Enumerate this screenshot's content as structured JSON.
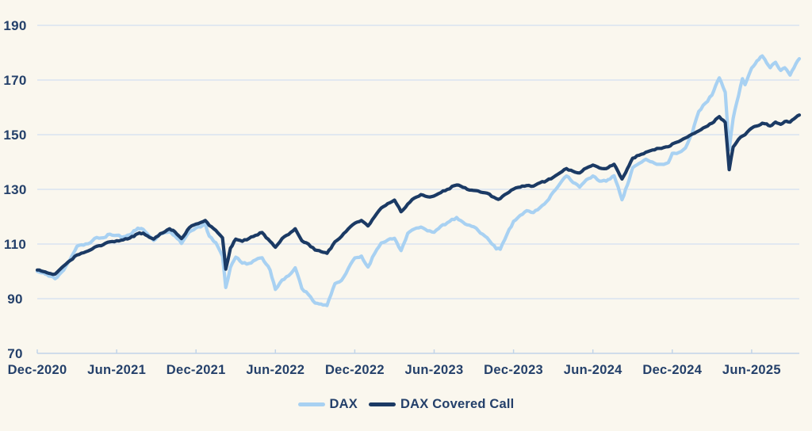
{
  "theme": {
    "background": "#FAF7EE",
    "grid_color": "#D2E0F1",
    "axis_color": "#C2D4E8",
    "text_color": "#24406A"
  },
  "chart_data": {
    "type": "line",
    "title": "",
    "x_unit": "months since Dec-2020",
    "index_base": "Dec-2020 = 100",
    "xlim": [
      0,
      57.6
    ],
    "ylim": [
      70,
      190
    ],
    "grid": "horizontal",
    "legend_position": "bottom-center",
    "y_ticks": [
      190,
      170,
      150,
      130,
      110,
      90,
      70
    ],
    "x_ticks": [
      {
        "label": "Dec-2020",
        "month": 0
      },
      {
        "label": "Jun-2021",
        "month": 6
      },
      {
        "label": "Dec-2021",
        "month": 12
      },
      {
        "label": "Jun-2022",
        "month": 18
      },
      {
        "label": "Dec-2022",
        "month": 24
      },
      {
        "label": "Jun-2023",
        "month": 30
      },
      {
        "label": "Dec-2023",
        "month": 36
      },
      {
        "label": "Jun-2024",
        "month": 42
      },
      {
        "label": "Dec-2024",
        "month": 48
      },
      {
        "label": "Jun-2025",
        "month": 54
      }
    ],
    "x": [
      0,
      0.6,
      1.0,
      1.35,
      2,
      2.5,
      3,
      3.5,
      4,
      4.5,
      5,
      5.5,
      6,
      6.5,
      7,
      7.6,
      8,
      8.8,
      9.3,
      10,
      10.4,
      10.9,
      11.5,
      12,
      12.7,
      13,
      13.5,
      14,
      14.25,
      14.6,
      15,
      15.5,
      16,
      16.5,
      17,
      17.6,
      18,
      18.5,
      19,
      19.5,
      20,
      20.5,
      21,
      21.9,
      22.5,
      23,
      23.5,
      24,
      24.5,
      25,
      25.5,
      26,
      26.5,
      27,
      27.5,
      28,
      28.5,
      29,
      29.5,
      30,
      30.5,
      31,
      31.7,
      32,
      32.5,
      33,
      33.5,
      34,
      34.7,
      35,
      35.5,
      36,
      36.5,
      37,
      37.5,
      38,
      38.5,
      39,
      39.5,
      40,
      40.5,
      41,
      41.5,
      42,
      42.5,
      43,
      43.6,
      44.2,
      44.6,
      45,
      45.5,
      46,
      46.5,
      47,
      47.7,
      48,
      48.5,
      49,
      49.5,
      50,
      50.5,
      51,
      51.55,
      52.0,
      52.3,
      52.6,
      53,
      53.3,
      53.5,
      54,
      54.4,
      54.8,
      55,
      55.4,
      55.8,
      56.2,
      56.5,
      56.9,
      57.2,
      57.6
    ],
    "series": [
      {
        "id": "dax",
        "name": "DAX",
        "color": "#A8D1F2",
        "width": 4.2,
        "jitter": 1.3,
        "values": [
          100,
          99.0,
          98.2,
          97.3,
          100.5,
          104.5,
          109.2,
          109.6,
          110.4,
          112.4,
          112.3,
          113.6,
          113.2,
          112.6,
          113.4,
          115.8,
          115.4,
          111.3,
          113.6,
          114.5,
          113.0,
          110.2,
          114.5,
          115.9,
          117.3,
          112.9,
          110.5,
          105.5,
          94.1,
          101.5,
          105.2,
          103.0,
          102.9,
          104.2,
          105.0,
          100.5,
          93.4,
          96.8,
          98.4,
          101.3,
          93.7,
          91.5,
          88.4,
          87.5,
          95.5,
          96.7,
          101.0,
          104.9,
          105.6,
          101.6,
          106.5,
          110.4,
          111.5,
          112.1,
          107.6,
          113.9,
          115.5,
          116.2,
          114.8,
          114.3,
          116.5,
          117.8,
          119.7,
          118.6,
          117.0,
          116.3,
          114.0,
          112.3,
          108.2,
          108.1,
          113.5,
          118.3,
          120.5,
          122.2,
          121.5,
          123.3,
          125.5,
          129.0,
          132.0,
          134.9,
          132.5,
          130.8,
          133.5,
          134.9,
          133.0,
          133.0,
          135.0,
          126.2,
          131.5,
          137.9,
          139.5,
          141.0,
          140.0,
          139.2,
          139.8,
          143.2,
          143.5,
          145.2,
          150.5,
          158.5,
          161.5,
          164.5,
          170.8,
          165.5,
          144.5,
          156.0,
          164.2,
          170.5,
          168.3,
          174.4,
          177.0,
          178.8,
          177.5,
          174.5,
          176.5,
          173.5,
          174.5,
          171.8,
          174.5,
          177.8
        ]
      },
      {
        "id": "dax-covered-call",
        "name": "DAX Covered Call",
        "color": "#1B3A64",
        "width": 4.2,
        "jitter": 0.9,
        "values": [
          100.5,
          99.8,
          99.2,
          99.0,
          102.0,
          104.0,
          106.0,
          106.8,
          107.8,
          109.2,
          109.8,
          110.8,
          111.2,
          111.5,
          112.2,
          113.8,
          114.0,
          111.8,
          113.8,
          115.6,
          114.5,
          112.0,
          116.0,
          117.3,
          118.6,
          116.8,
          115.0,
          112.3,
          100.8,
          108.5,
          111.8,
          111.0,
          112.0,
          113.2,
          114.2,
          111.0,
          108.8,
          112.0,
          113.5,
          115.6,
          111.2,
          110.0,
          107.8,
          106.6,
          110.8,
          112.8,
          115.5,
          117.6,
          118.6,
          116.6,
          120.0,
          123.2,
          124.8,
          126.1,
          121.8,
          124.6,
          126.8,
          128.1,
          127.3,
          127.6,
          128.8,
          130.0,
          131.6,
          131.2,
          130.0,
          129.6,
          129.0,
          128.6,
          126.6,
          126.6,
          128.5,
          130.1,
          130.8,
          131.4,
          131.2,
          132.4,
          133.2,
          134.4,
          136.0,
          137.6,
          136.6,
          136.0,
          137.8,
          138.9,
          137.8,
          137.6,
          139.2,
          133.8,
          137.5,
          141.4,
          142.5,
          143.6,
          144.4,
          145.0,
          145.6,
          146.6,
          147.5,
          148.8,
          150.2,
          151.4,
          152.8,
          154.2,
          156.6,
          154.5,
          137.2,
          145.5,
          148.3,
          149.5,
          150.0,
          152.4,
          153.2,
          154.2,
          154.0,
          153.2,
          154.6,
          153.8,
          154.8,
          154.6,
          155.8,
          157.2
        ]
      }
    ]
  }
}
